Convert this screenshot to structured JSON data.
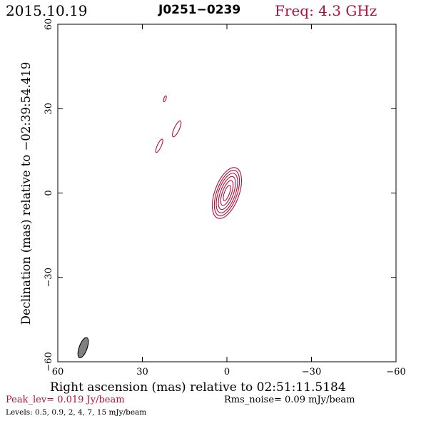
{
  "header": {
    "date": "2015.10.19",
    "source": "J0251−0239",
    "freq": "Freq: 4.3 GHz"
  },
  "footer": {
    "peak": "Peak_lev=  0.019 Jy/beam",
    "rms": "Rms_noise= 0.09 mJy/beam",
    "levels": "Levels: 0.5, 0.9,   2,   4,   7,  15 mJy/beam"
  },
  "colors": {
    "contour": "#b0103c",
    "beam": "#808080",
    "text": "#000000"
  },
  "chart_data": {
    "type": "contour",
    "xlabel": "Right ascension (mas) relative to 02:51:11.5184",
    "ylabel": "Declination (mas) relative to −02:39:54.419",
    "xlim": [
      60,
      -60
    ],
    "ylim": [
      -60,
      60
    ],
    "xticks": [
      60,
      30,
      0,
      -30,
      -60
    ],
    "yticks": [
      -60,
      -30,
      0,
      30,
      60
    ],
    "x_tick_labels": [
      "60",
      "30",
      "0",
      "−30",
      "−60"
    ],
    "y_tick_labels": [
      "−60",
      "−30",
      "0",
      "30",
      "60"
    ],
    "contour_levels_mJy": [
      0.5,
      0.9,
      2,
      4,
      7,
      15
    ],
    "core": {
      "center": [
        0,
        0
      ],
      "position_angle_deg": 20,
      "semi_axes": [
        [
          4.3,
          9.5
        ],
        [
          3.6,
          8.5
        ],
        [
          3.0,
          7.4
        ],
        [
          2.3,
          6.2
        ],
        [
          1.6,
          4.7
        ],
        [
          0.9,
          2.9
        ]
      ]
    },
    "components": [
      {
        "center": [
          22.0,
          33.5
        ],
        "semi_axes": [
          0.4,
          1.1
        ],
        "position_angle_deg": 20
      },
      {
        "center": [
          17.8,
          22.8
        ],
        "semi_axes": [
          0.9,
          3.1
        ],
        "position_angle_deg": 25
      },
      {
        "center": [
          24.0,
          16.8
        ],
        "semi_axes": [
          0.7,
          2.6
        ],
        "position_angle_deg": 25
      }
    ],
    "beam": {
      "center": [
        51,
        -55
      ],
      "semi_axes": [
        1.4,
        3.8
      ],
      "position_angle_deg": 20
    }
  }
}
